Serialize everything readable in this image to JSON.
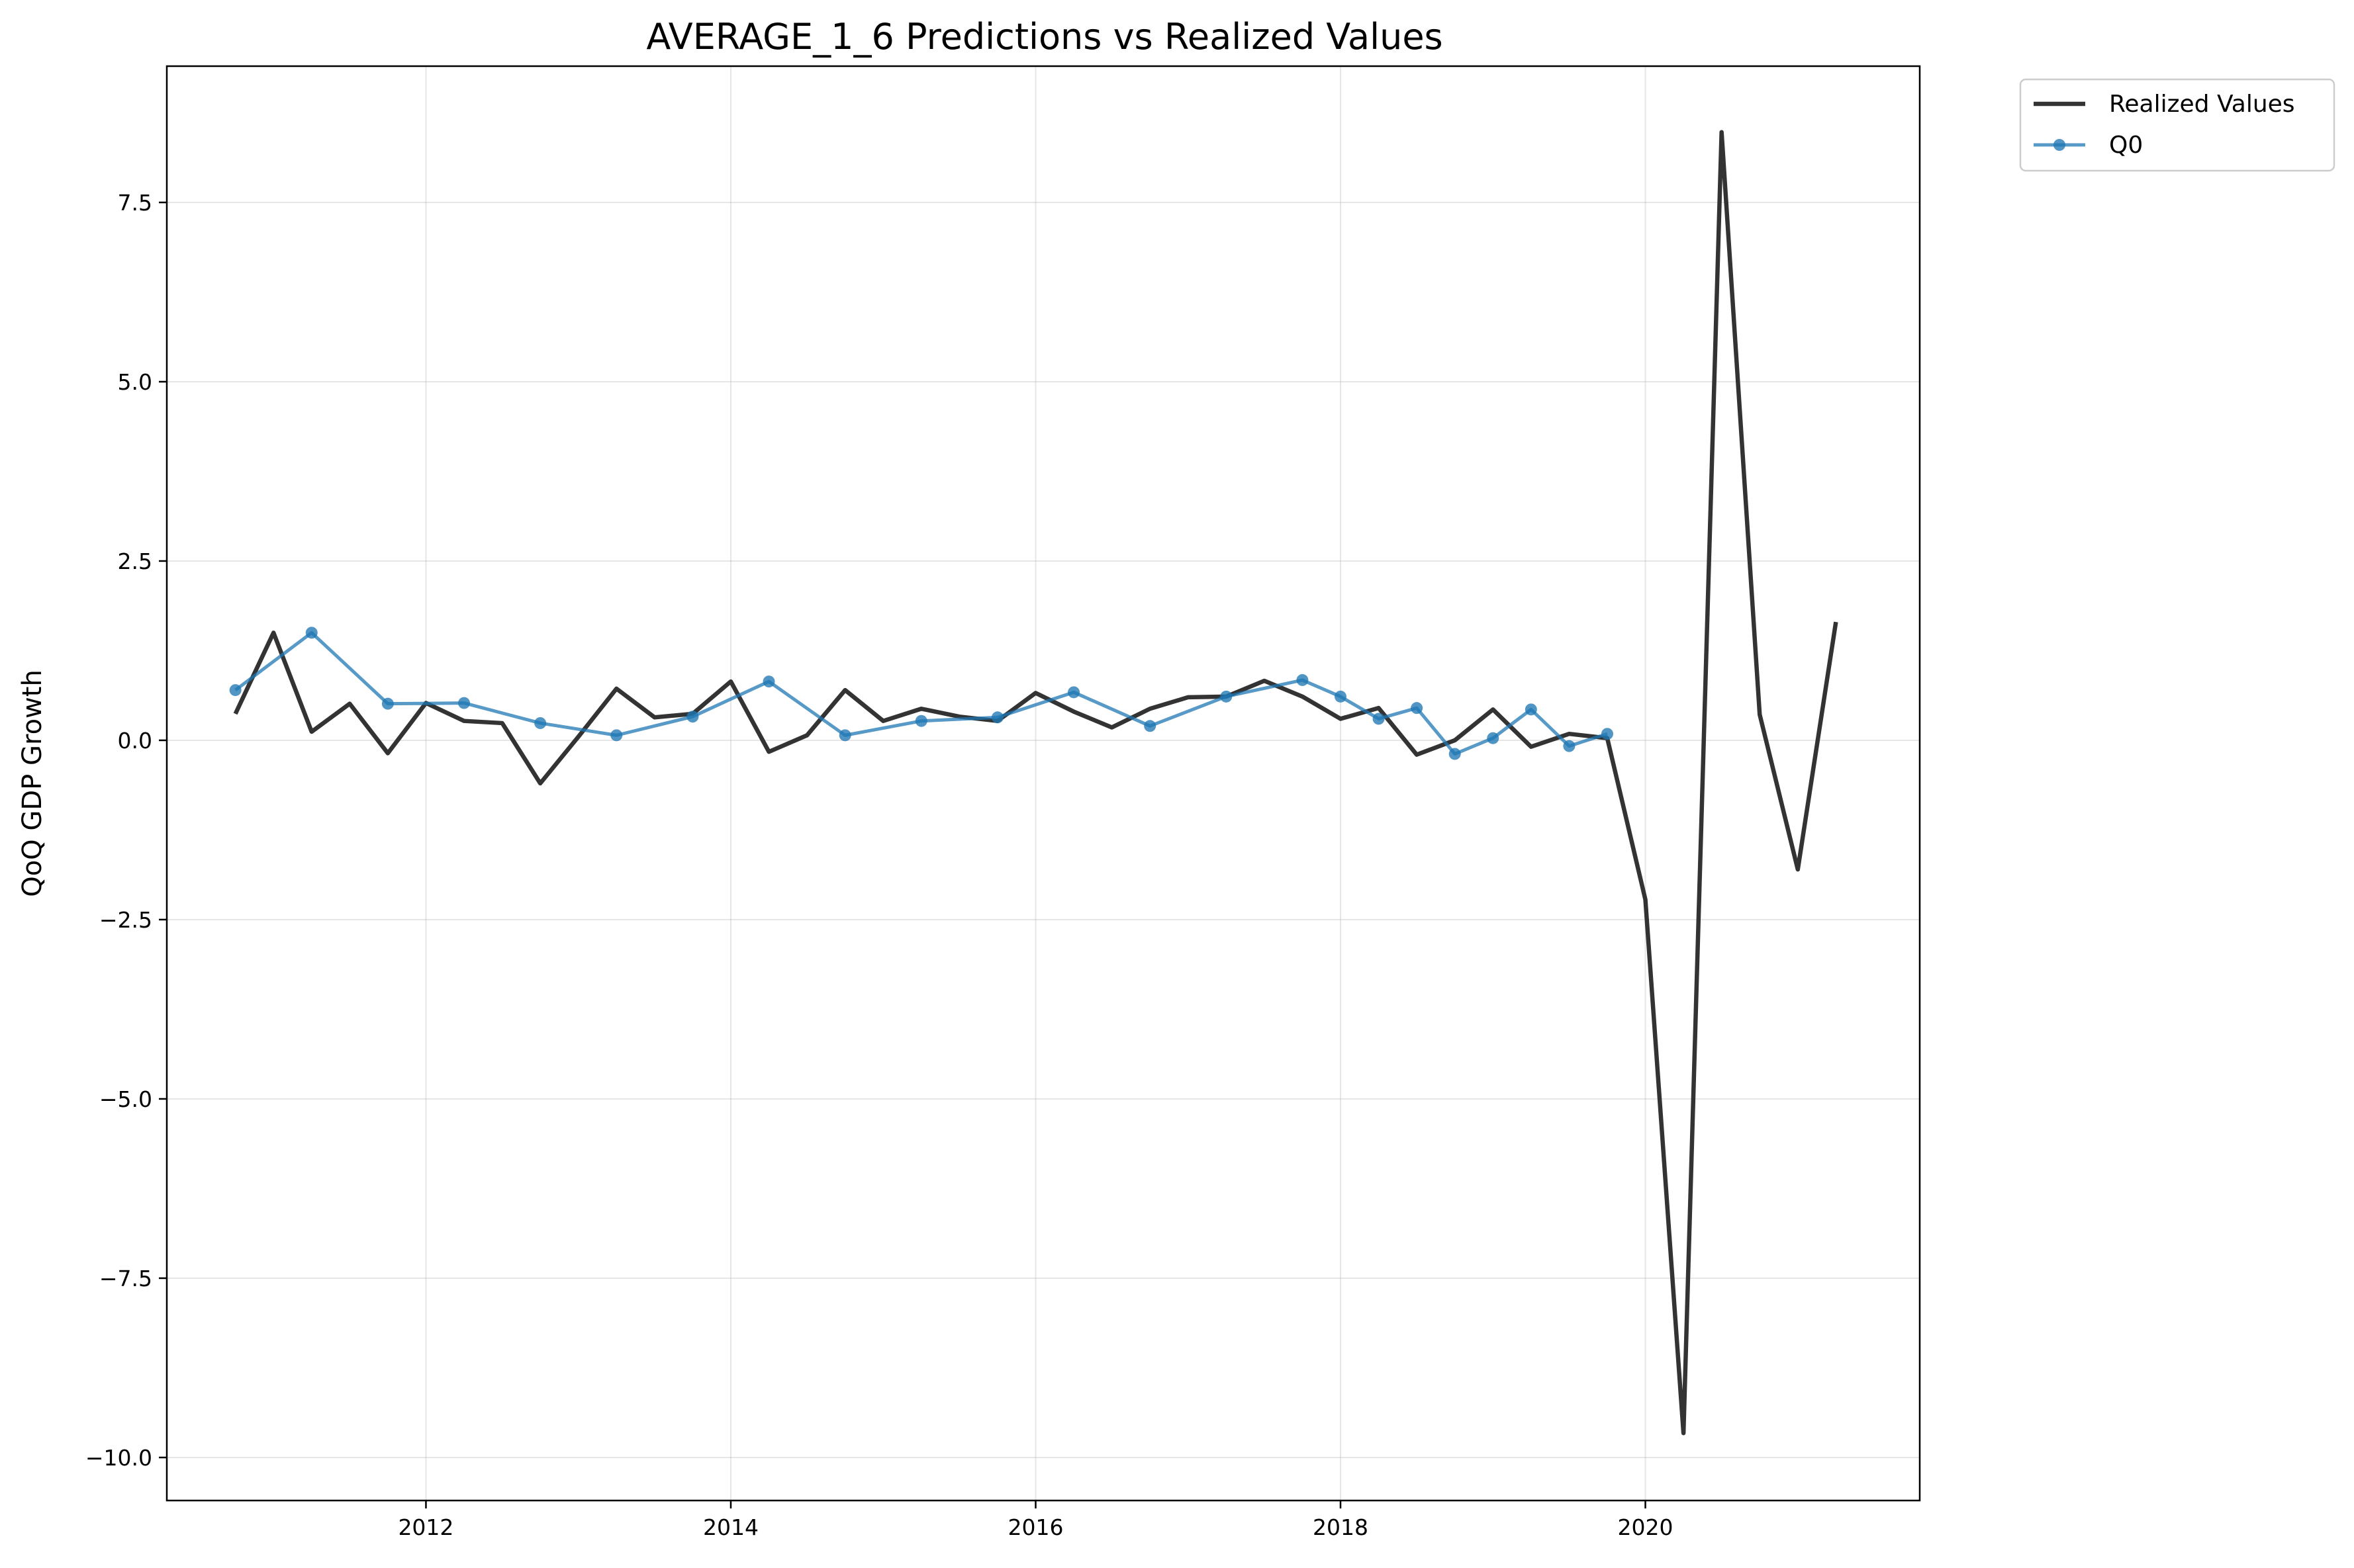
{
  "chart_data": {
    "type": "line",
    "title": "AVERAGE_1_6 Predictions vs Realized Values",
    "xlabel": "",
    "ylabel": "QoQ GDP Growth",
    "xlim": [
      2010.3,
      2021.8
    ],
    "ylim": [
      -10.6,
      9.4
    ],
    "xticks": [
      2012,
      2014,
      2016,
      2018,
      2020
    ],
    "yticks": [
      -10.0,
      -7.5,
      -5.0,
      -2.5,
      0.0,
      2.5,
      5.0,
      7.5
    ],
    "ytick_labels": [
      "−10.0",
      "−7.5",
      "−5.0",
      "−2.5",
      "0.0",
      "2.5",
      "5.0",
      "7.5"
    ],
    "grid": true,
    "legend_position": "outside-top-right",
    "series": [
      {
        "name": "Realized Values",
        "color": "#333333",
        "marker": "none",
        "points": [
          [
            "2010-10-01",
            0.37
          ],
          [
            "2011-01-01",
            1.5
          ],
          [
            "2011-04-01",
            0.12
          ],
          [
            "2011-07-01",
            0.51
          ],
          [
            "2011-10-01",
            -0.18
          ],
          [
            "2012-01-01",
            0.52
          ],
          [
            "2012-04-01",
            0.27
          ],
          [
            "2012-07-01",
            0.24
          ],
          [
            "2012-10-01",
            -0.6
          ],
          [
            "2013-01-01",
            0.05
          ],
          [
            "2013-04-01",
            0.72
          ],
          [
            "2013-07-01",
            0.32
          ],
          [
            "2013-10-01",
            0.37
          ],
          [
            "2014-01-01",
            0.82
          ],
          [
            "2014-04-01",
            -0.16
          ],
          [
            "2014-07-01",
            0.07
          ],
          [
            "2014-10-01",
            0.7
          ],
          [
            "2015-01-01",
            0.27
          ],
          [
            "2015-04-01",
            0.44
          ],
          [
            "2015-07-01",
            0.33
          ],
          [
            "2015-10-01",
            0.27
          ],
          [
            "2016-01-01",
            0.66
          ],
          [
            "2016-04-01",
            0.4
          ],
          [
            "2016-07-01",
            0.18
          ],
          [
            "2016-10-01",
            0.44
          ],
          [
            "2017-01-01",
            0.6
          ],
          [
            "2017-04-01",
            0.61
          ],
          [
            "2017-07-01",
            0.83
          ],
          [
            "2017-10-01",
            0.61
          ],
          [
            "2018-01-01",
            0.3
          ],
          [
            "2018-04-01",
            0.45
          ],
          [
            "2018-07-01",
            -0.2
          ],
          [
            "2018-10-01",
            0.0
          ],
          [
            "2019-01-01",
            0.43
          ],
          [
            "2019-04-01",
            -0.09
          ],
          [
            "2019-07-01",
            0.09
          ],
          [
            "2019-10-01",
            0.03
          ],
          [
            "2020-01-01",
            -2.22
          ],
          [
            "2020-04-01",
            -9.66
          ],
          [
            "2020-07-01",
            8.48
          ],
          [
            "2020-10-01",
            0.36
          ],
          [
            "2021-01-01",
            -1.8
          ],
          [
            "2021-04-01",
            1.65
          ]
        ]
      },
      {
        "name": "Q0",
        "color": "#1f77b4",
        "marker": "circle",
        "points": [
          [
            "2010-10-01",
            0.7
          ],
          [
            "2011-04-01",
            1.5
          ],
          [
            "2011-10-01",
            0.51
          ],
          [
            "2012-04-01",
            0.52
          ],
          [
            "2012-10-01",
            0.24
          ],
          [
            "2013-04-01",
            0.07
          ],
          [
            "2013-10-01",
            0.33
          ],
          [
            "2014-04-01",
            0.82
          ],
          [
            "2014-10-01",
            0.07
          ],
          [
            "2015-04-01",
            0.27
          ],
          [
            "2015-10-01",
            0.32
          ],
          [
            "2016-04-01",
            0.67
          ],
          [
            "2016-10-01",
            0.2
          ],
          [
            "2017-04-01",
            0.61
          ],
          [
            "2017-10-01",
            0.84
          ],
          [
            "2018-01-01",
            0.61
          ],
          [
            "2018-04-01",
            0.3
          ],
          [
            "2018-07-01",
            0.45
          ],
          [
            "2018-10-01",
            -0.19
          ],
          [
            "2019-01-01",
            0.03
          ],
          [
            "2019-04-01",
            0.43
          ],
          [
            "2019-07-01",
            -0.08
          ],
          [
            "2019-10-01",
            0.09
          ]
        ]
      }
    ]
  }
}
